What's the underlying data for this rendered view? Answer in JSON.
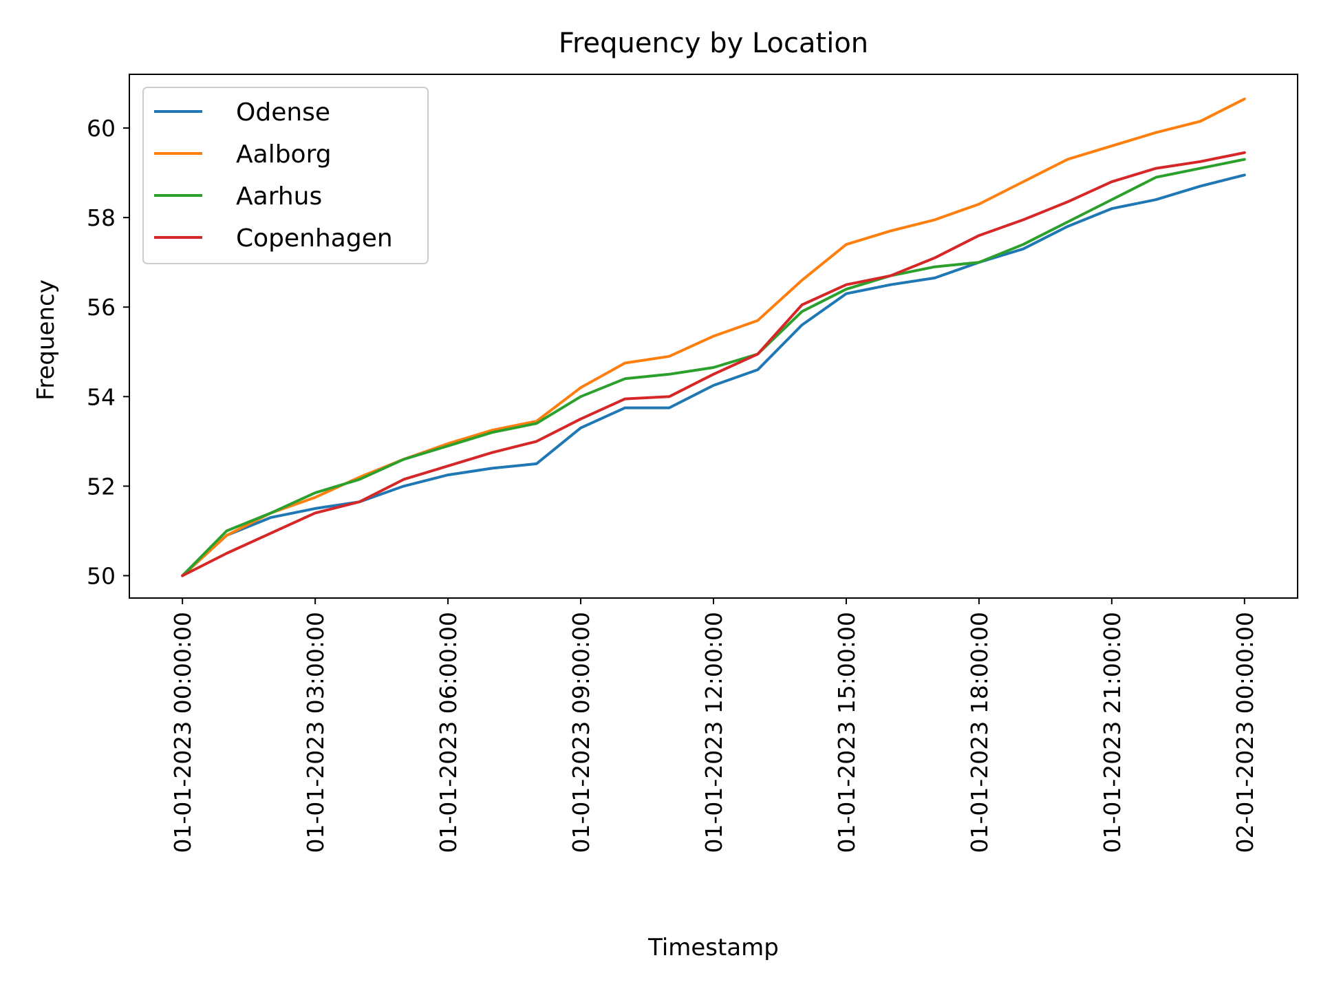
{
  "chart_data": {
    "type": "line",
    "title": "Frequency by Location",
    "xlabel": "Timestamp",
    "ylabel": "Frequency",
    "xlim": [
      "01-01-2023 00:00:00",
      "02-01-2023 00:00:00"
    ],
    "ylim": [
      49.5,
      61.2
    ],
    "grid": false,
    "legend_position": "top-left",
    "x_ticks": [
      "01-01-2023 00:00:00",
      "01-01-2023 03:00:00",
      "01-01-2023 06:00:00",
      "01-01-2023 09:00:00",
      "01-01-2023 12:00:00",
      "01-01-2023 15:00:00",
      "01-01-2023 18:00:00",
      "01-01-2023 21:00:00",
      "02-01-2023 00:00:00"
    ],
    "y_ticks": [
      50,
      52,
      54,
      56,
      58,
      60
    ],
    "x": [
      "01-01-2023 00:00:00",
      "01-01-2023 01:00:00",
      "01-01-2023 02:00:00",
      "01-01-2023 03:00:00",
      "01-01-2023 04:00:00",
      "01-01-2023 05:00:00",
      "01-01-2023 06:00:00",
      "01-01-2023 07:00:00",
      "01-01-2023 08:00:00",
      "01-01-2023 09:00:00",
      "01-01-2023 10:00:00",
      "01-01-2023 11:00:00",
      "01-01-2023 12:00:00",
      "01-01-2023 13:00:00",
      "01-01-2023 14:00:00",
      "01-01-2023 15:00:00",
      "01-01-2023 16:00:00",
      "01-01-2023 17:00:00",
      "01-01-2023 18:00:00",
      "01-01-2023 19:00:00",
      "01-01-2023 20:00:00",
      "01-01-2023 21:00:00",
      "01-01-2023 22:00:00",
      "01-01-2023 23:00:00",
      "02-01-2023 00:00:00"
    ],
    "series": [
      {
        "name": "Odense",
        "color": "#1f77b4",
        "values": [
          50.0,
          50.9,
          51.3,
          51.5,
          51.65,
          52.0,
          52.25,
          52.4,
          52.5,
          53.3,
          53.75,
          53.75,
          54.25,
          54.6,
          55.6,
          56.3,
          56.5,
          56.65,
          57.0,
          57.3,
          57.8,
          58.2,
          58.4,
          58.7,
          58.95
        ]
      },
      {
        "name": "Aalborg",
        "color": "#ff7f0e",
        "values": [
          50.0,
          50.9,
          51.4,
          51.75,
          52.2,
          52.6,
          52.95,
          53.25,
          53.45,
          54.2,
          54.75,
          54.9,
          55.35,
          55.7,
          56.6,
          57.4,
          57.7,
          57.95,
          58.3,
          58.8,
          59.3,
          59.6,
          59.9,
          60.15,
          60.65
        ]
      },
      {
        "name": "Aarhus",
        "color": "#2ca02c",
        "values": [
          50.0,
          51.0,
          51.4,
          51.85,
          52.15,
          52.6,
          52.9,
          53.2,
          53.4,
          54.0,
          54.4,
          54.5,
          54.65,
          54.95,
          55.9,
          56.4,
          56.7,
          56.9,
          57.0,
          57.4,
          57.9,
          58.4,
          58.9,
          59.1,
          59.3
        ]
      },
      {
        "name": "Copenhagen",
        "color": "#d62728",
        "values": [
          50.0,
          50.5,
          50.95,
          51.4,
          51.65,
          52.15,
          52.45,
          52.75,
          53.0,
          53.5,
          53.95,
          54.0,
          54.5,
          54.95,
          56.05,
          56.5,
          56.7,
          57.1,
          57.6,
          57.95,
          58.35,
          58.8,
          59.1,
          59.25,
          59.45
        ]
      }
    ]
  }
}
